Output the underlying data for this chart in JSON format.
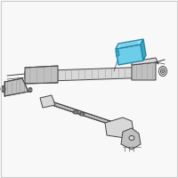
{
  "bg": "#f8f8f8",
  "border": "#cccccc",
  "lc": "#444444",
  "lw": 0.7,
  "gray_fill": "#d8d8d8",
  "gray_mid": "#c0c0c0",
  "gray_dark": "#a0a0a0",
  "white": "#ffffff",
  "blue_fill": "#6ecde8",
  "blue_top": "#a0dff0",
  "blue_dark": "#3aa8c8",
  "blue_edge": "#2288aa"
}
